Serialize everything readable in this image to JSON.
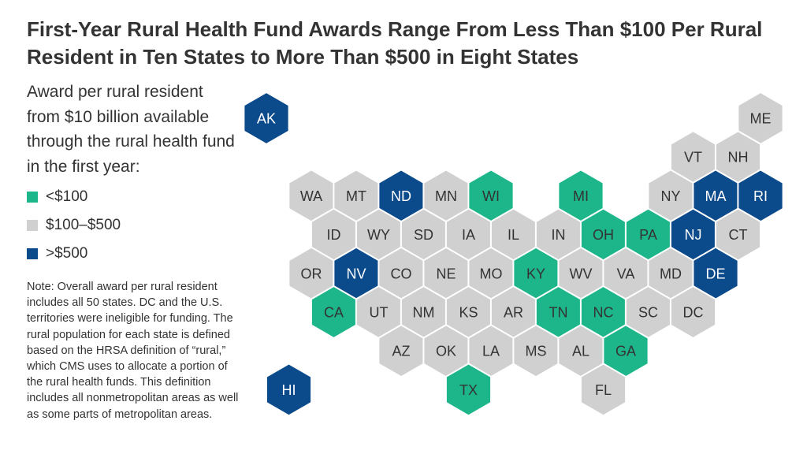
{
  "title": "First-Year Rural Health Fund Awards Range From Less Than $100 Per Rural Resident in Ten States to More Than $500 in Eight States",
  "subtitle": "Award per rural resident from $10 billion available through the rural health fund in the first year:",
  "note": "Note: Overall award per rural resident includes all 50 states. DC and the U.S. territories were ineligible for funding. The rural population for each state is defined based on the HRSA definition of “rural,” which CMS uses to allocate a portion of the rural health funds. This definition includes all nonmetropolitan areas as well as some parts of metropolitan areas.",
  "legend": [
    {
      "key": "low",
      "label": "<$100",
      "color": "#1db68a"
    },
    {
      "key": "mid",
      "label": "$100–$500",
      "color": "#d0d0d0"
    },
    {
      "key": "high",
      "label": ">$500",
      "color": "#0b4a8b"
    }
  ],
  "chart_data": {
    "type": "hex-tile-map",
    "categories_by_state": {
      "AK": "high",
      "ME": "mid",
      "VT": "mid",
      "NH": "mid",
      "WA": "mid",
      "MT": "mid",
      "ND": "high",
      "MN": "mid",
      "WI": "low",
      "MI": "low",
      "NY": "mid",
      "MA": "high",
      "RI": "high",
      "ID": "mid",
      "WY": "mid",
      "SD": "mid",
      "IA": "mid",
      "IL": "mid",
      "IN": "mid",
      "OH": "low",
      "PA": "low",
      "NJ": "high",
      "CT": "mid",
      "OR": "mid",
      "NV": "high",
      "CO": "mid",
      "NE": "mid",
      "MO": "mid",
      "KY": "low",
      "WV": "mid",
      "VA": "mid",
      "MD": "mid",
      "DE": "high",
      "CA": "low",
      "UT": "mid",
      "NM": "mid",
      "KS": "mid",
      "AR": "mid",
      "TN": "low",
      "NC": "low",
      "SC": "mid",
      "DC": "mid",
      "AZ": "mid",
      "OK": "mid",
      "LA": "mid",
      "MS": "mid",
      "AL": "mid",
      "GA": "low",
      "HI": "high",
      "TX": "low",
      "FL": "mid"
    }
  }
}
